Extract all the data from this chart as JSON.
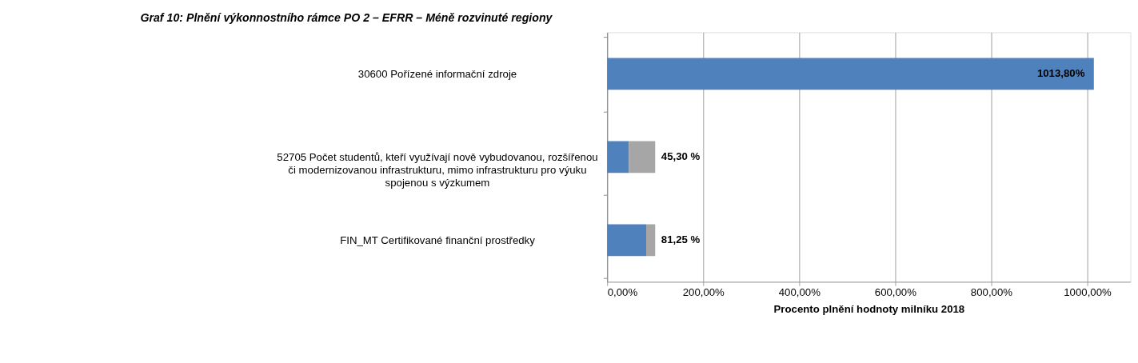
{
  "chart_data": {
    "type": "bar",
    "orientation": "horizontal",
    "stacked": true,
    "title": "Graf 10: Plnění výkonnostního rámce PO 2 – EFRR – Méně rozvinuté regiony",
    "xlabel": "Procento plnění hodnoty  milníku 2018",
    "categories": [
      "30600 Pořízené informační zdroje",
      "52705 Počet studentů, kteří využívají nově vybudovanou, rozšířenou\nči modernizovanou infrastrukturu, mimo infrastrukturu pro výuku\nspojenou s výzkumem",
      "FIN_MT Certifikované finanční prostředky"
    ],
    "series": [
      {
        "color": "#4f81bd",
        "values": [
          1013.8,
          45.3,
          81.25
        ],
        "value_labels": [
          "1013,80%",
          "45,30 %",
          "81,25 %"
        ]
      },
      {
        "color": "#a6a6a6",
        "values": [
          0,
          54.7,
          18.75
        ]
      }
    ],
    "xlim": [
      0,
      1090
    ],
    "xticks": [
      {
        "value": 0,
        "label": "0,00%"
      },
      {
        "value": 200,
        "label": "200,00%"
      },
      {
        "value": 400,
        "label": "400,00%"
      },
      {
        "value": 600,
        "label": "600,00%"
      },
      {
        "value": 800,
        "label": "800,00%"
      },
      {
        "value": 1000,
        "label": "1000,00%"
      }
    ],
    "grid": "x",
    "legend": false
  }
}
